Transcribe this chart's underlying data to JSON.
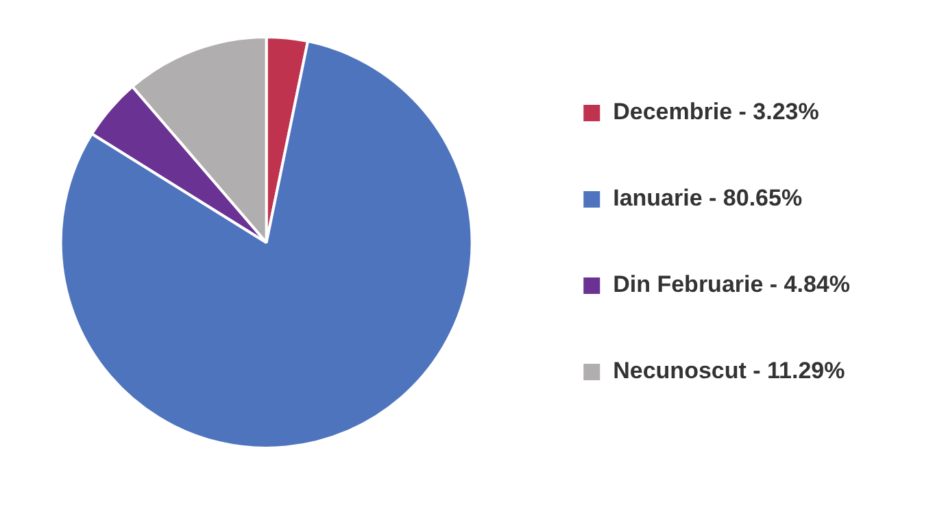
{
  "chart_data": {
    "type": "pie",
    "categories": [
      "Decembrie - 3.23%",
      "Ianuarie - 80.65%",
      "Din Februarie - 4.84%",
      "Necunoscut - 11.29%"
    ],
    "values": [
      3.23,
      80.65,
      4.84,
      11.29
    ],
    "colors": [
      "#c0334f",
      "#4f74be",
      "#6a3293",
      "#b0aeaf"
    ],
    "legend": "right"
  }
}
